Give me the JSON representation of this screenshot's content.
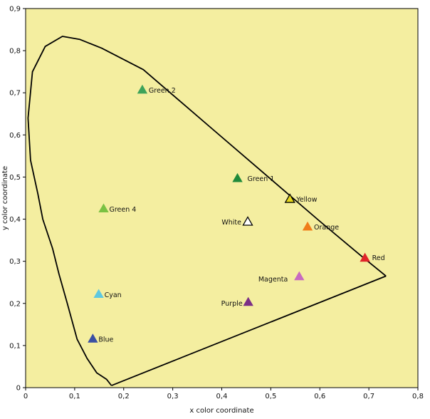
{
  "chart_data": {
    "type": "scatter",
    "title": "",
    "xlabel": "x color coordinate",
    "ylabel": "y color coordinate",
    "xlim": [
      0,
      0.8
    ],
    "ylim": [
      0,
      0.9
    ],
    "x_ticks": [
      "0",
      "0,1",
      "0,2",
      "0,3",
      "0,4",
      "0,5",
      "0,6",
      "0,7",
      "0,8"
    ],
    "y_ticks": [
      "0",
      "0,1",
      "0,2",
      "0,3",
      "0,4",
      "0,5",
      "0,6",
      "0,7",
      "0,8",
      "0,9"
    ],
    "grid": false,
    "legend": "none",
    "background_color": "#f4eea0",
    "spectral_locus": [
      [
        0.175,
        0.005
      ],
      [
        0.165,
        0.02
      ],
      [
        0.145,
        0.035
      ],
      [
        0.125,
        0.07
      ],
      [
        0.105,
        0.115
      ],
      [
        0.085,
        0.2
      ],
      [
        0.068,
        0.27
      ],
      [
        0.055,
        0.33
      ],
      [
        0.035,
        0.4
      ],
      [
        0.025,
        0.46
      ],
      [
        0.01,
        0.54
      ],
      [
        0.005,
        0.64
      ],
      [
        0.014,
        0.75
      ],
      [
        0.04,
        0.81
      ],
      [
        0.075,
        0.834
      ],
      [
        0.11,
        0.827
      ],
      [
        0.155,
        0.806
      ],
      [
        0.24,
        0.755
      ],
      [
        0.3,
        0.695
      ],
      [
        0.38,
        0.615
      ],
      [
        0.48,
        0.515
      ],
      [
        0.6,
        0.395
      ],
      [
        0.68,
        0.317
      ],
      [
        0.735,
        0.265
      ]
    ],
    "purple_line": [
      [
        0.735,
        0.265
      ],
      [
        0.175,
        0.005
      ]
    ],
    "points": [
      {
        "label": "Green 2",
        "x": 0.238,
        "y": 0.707,
        "color": "#3da35a",
        "filled": true
      },
      {
        "label": "Green 1",
        "x": 0.432,
        "y": 0.497,
        "color": "#1f8a3a",
        "filled": true
      },
      {
        "label": "Yellow",
        "x": 0.539,
        "y": 0.448,
        "color": "#e6d81e",
        "filled": false
      },
      {
        "label": "Green 4",
        "x": 0.159,
        "y": 0.425,
        "color": "#7ac143",
        "filled": true
      },
      {
        "label": "White",
        "x": 0.453,
        "y": 0.394,
        "color": "#ffffff",
        "filled": false
      },
      {
        "label": "Orange",
        "x": 0.575,
        "y": 0.382,
        "color": "#f07d1a",
        "filled": true
      },
      {
        "label": "Red",
        "x": 0.692,
        "y": 0.308,
        "color": "#e0242a",
        "filled": true
      },
      {
        "label": "Magenta",
        "x": 0.558,
        "y": 0.264,
        "color": "#c86ac0",
        "filled": true
      },
      {
        "label": "Cyan",
        "x": 0.149,
        "y": 0.222,
        "color": "#5ec8e0",
        "filled": true
      },
      {
        "label": "Purple",
        "x": 0.454,
        "y": 0.203,
        "color": "#7b2f86",
        "filled": true
      },
      {
        "label": "Blue",
        "x": 0.137,
        "y": 0.116,
        "color": "#3a4fa3",
        "filled": true
      }
    ]
  }
}
